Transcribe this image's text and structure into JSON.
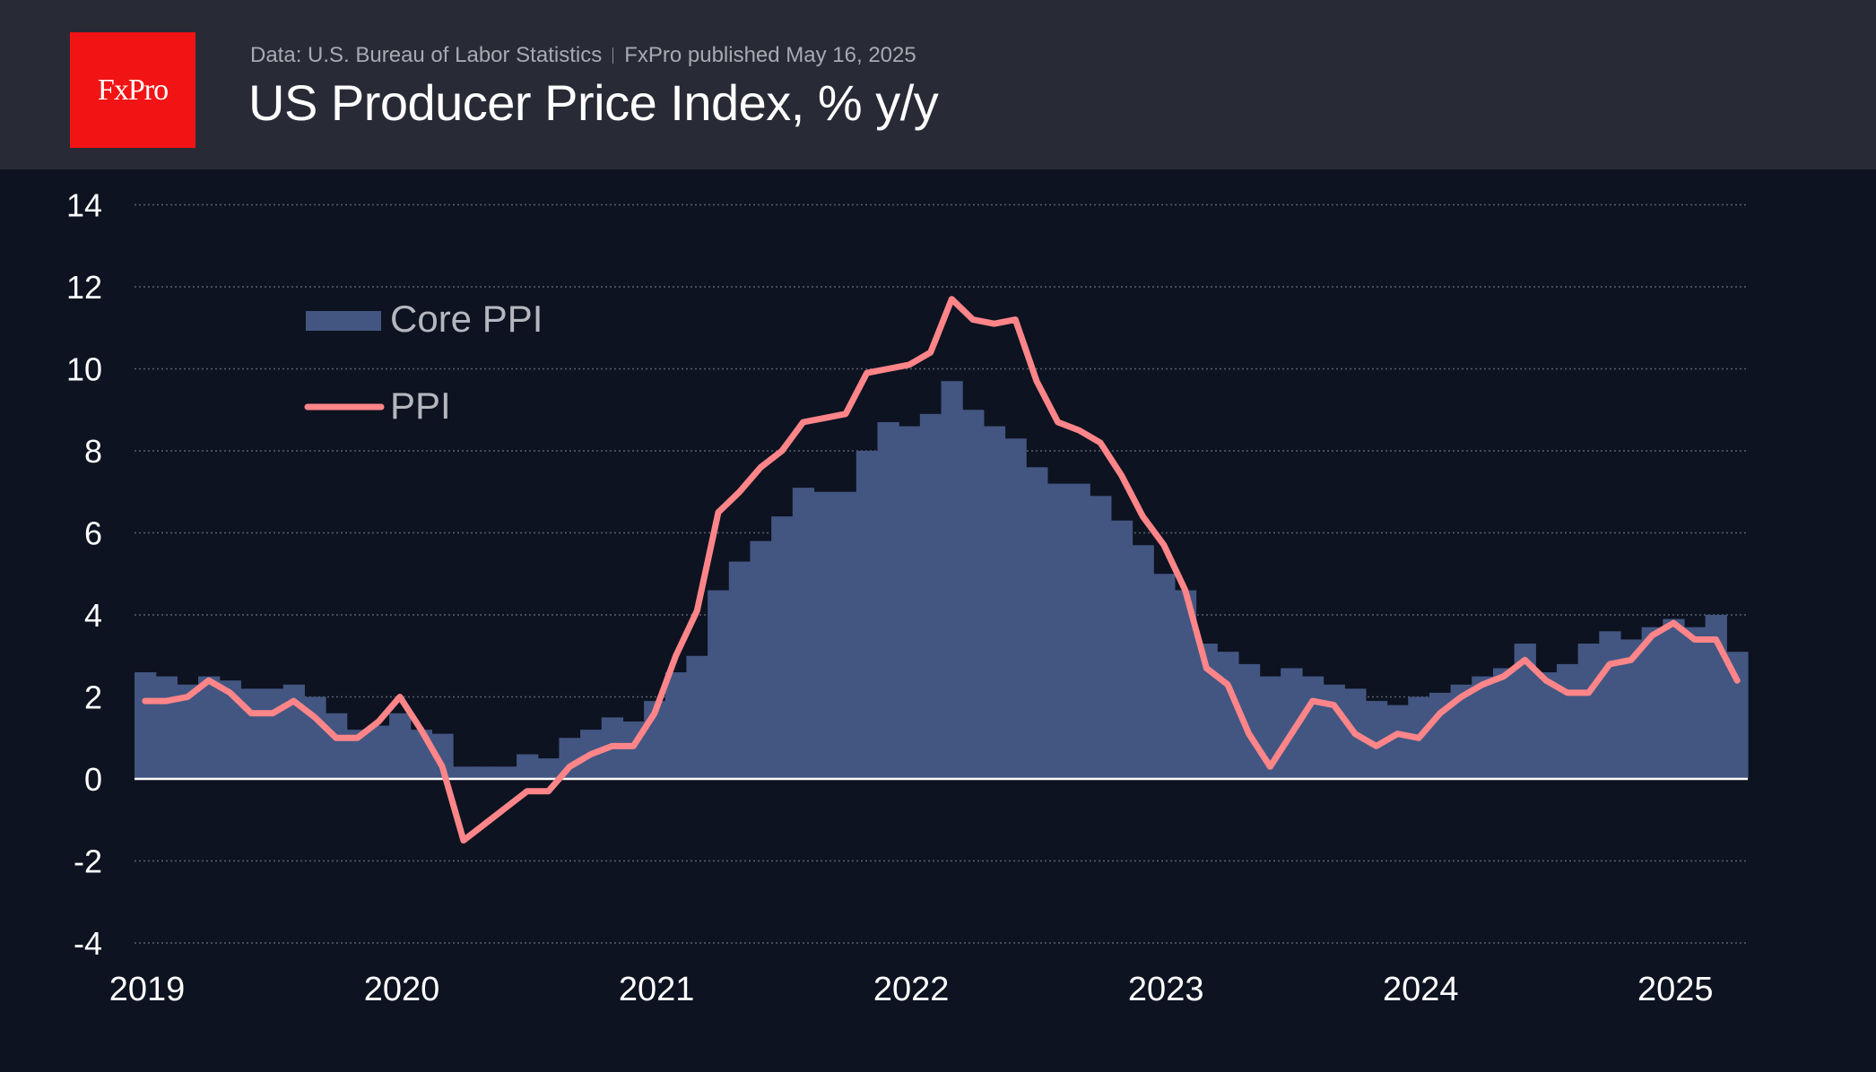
{
  "header": {
    "logo_text": "FxPro",
    "source": "Data: U.S. Bureau of Labor Statistics",
    "published": "FxPro published May 16, 2025",
    "title": "US Producer Price Index, % y/y"
  },
  "colors": {
    "header_bg": "#282b36",
    "chart_bg": "#0d1320",
    "logo_red": "#f21414",
    "core_ppi": "#435682",
    "ppi": "#ff8589",
    "zero_line": "#ffffff",
    "grid": "#5a5f6b"
  },
  "chart_data": {
    "type": "bar",
    "title": "US Producer Price Index, % y/y",
    "xlabel": "",
    "ylabel": "",
    "ylim": [
      -4,
      14
    ],
    "yticks": [
      14,
      12,
      10,
      8,
      6,
      4,
      2,
      0,
      -2,
      -4
    ],
    "xticks": [
      "2019",
      "2020",
      "2021",
      "2022",
      "2023",
      "2024",
      "2025"
    ],
    "grid": true,
    "legend_position": "top-left",
    "start_month": "2019-01",
    "end_month": "2025-04",
    "series": [
      {
        "name": "Core PPI",
        "type": "step-area",
        "values": [
          2.6,
          2.5,
          2.3,
          2.5,
          2.4,
          2.2,
          2.2,
          2.3,
          2.0,
          1.6,
          1.2,
          1.3,
          1.6,
          1.2,
          1.1,
          0.3,
          0.3,
          0.3,
          0.6,
          0.5,
          1.0,
          1.2,
          1.5,
          1.4,
          1.9,
          2.6,
          3.0,
          4.6,
          5.3,
          5.8,
          6.4,
          7.1,
          7.0,
          7.0,
          8.0,
          8.7,
          8.6,
          8.9,
          9.7,
          9.0,
          8.6,
          8.3,
          7.6,
          7.2,
          7.2,
          6.9,
          6.3,
          5.7,
          5.0,
          4.6,
          3.3,
          3.1,
          2.8,
          2.5,
          2.7,
          2.5,
          2.3,
          2.2,
          1.9,
          1.8,
          2.0,
          2.1,
          2.3,
          2.5,
          2.7,
          3.3,
          2.6,
          2.8,
          3.3,
          3.6,
          3.4,
          3.7,
          3.9,
          3.7,
          4.0,
          3.1
        ]
      },
      {
        "name": "PPI",
        "type": "line",
        "values": [
          1.9,
          1.9,
          2.0,
          2.4,
          2.1,
          1.6,
          1.6,
          1.9,
          1.5,
          1.0,
          1.0,
          1.4,
          2.0,
          1.2,
          0.3,
          -1.5,
          -1.1,
          -0.7,
          -0.3,
          -0.3,
          0.3,
          0.6,
          0.8,
          0.8,
          1.6,
          3.0,
          4.1,
          6.5,
          7.0,
          7.6,
          8.0,
          8.7,
          8.8,
          8.9,
          9.9,
          10.0,
          10.1,
          10.4,
          11.7,
          11.2,
          11.1,
          11.2,
          9.7,
          8.7,
          8.5,
          8.2,
          7.4,
          6.4,
          5.7,
          4.6,
          2.7,
          2.3,
          1.1,
          0.3,
          1.1,
          1.9,
          1.8,
          1.1,
          0.8,
          1.1,
          1.0,
          1.6,
          2.0,
          2.3,
          2.5,
          2.9,
          2.4,
          2.1,
          2.1,
          2.8,
          2.9,
          3.5,
          3.8,
          3.4,
          3.4,
          2.4
        ]
      }
    ]
  }
}
